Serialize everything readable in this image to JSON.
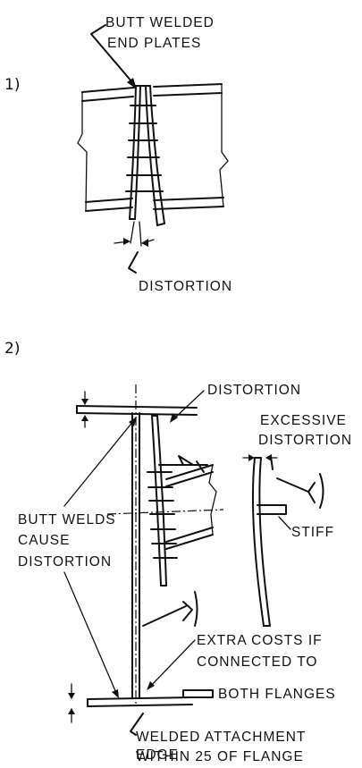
{
  "diagram_1": {
    "number": "1)",
    "label_plates_line1": "BUTT WELDED",
    "label_plates_line2": "END PLATES",
    "label_distortion": "DISTORTION"
  },
  "diagram_2": {
    "number": "2)",
    "label_distortion_top": "DISTORTION",
    "label_excessive_line1": "EXCESSIVE",
    "label_excessive_line2": "DISTORTION",
    "label_stiff": "STIFF",
    "label_butt_line1": "BUTT WELDS",
    "label_butt_line2": "CAUSE",
    "label_butt_line3": "DISTORTION",
    "label_costs_line1": "EXTRA COSTS IF",
    "label_costs_line2": "CONNECTED TO",
    "label_costs_line3": "BOTH FLANGES",
    "label_attach_line1": "WELDED ATTACHMENT",
    "label_attach_line2": "WITHIN 25 OF FLANGE",
    "label_attach_line3": "EDGE"
  }
}
